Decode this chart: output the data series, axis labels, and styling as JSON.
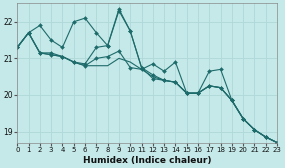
{
  "xlabel": "Humidex (Indice chaleur)",
  "bg_color": "#c5e8e8",
  "line_color": "#1e6b6b",
  "grid_color": "#b0d8d8",
  "xlim": [
    0,
    23
  ],
  "ylim": [
    18.7,
    22.5
  ],
  "yticks": [
    19,
    20,
    21,
    22
  ],
  "xticks": [
    0,
    1,
    2,
    3,
    4,
    5,
    6,
    7,
    8,
    9,
    10,
    11,
    12,
    13,
    14,
    15,
    16,
    17,
    18,
    19,
    20,
    21,
    22,
    23
  ],
  "series": [
    {
      "y": [
        21.3,
        21.7,
        21.15,
        21.1,
        21.05,
        20.9,
        20.8,
        20.8,
        20.8,
        21.0,
        20.9,
        20.7,
        20.5,
        20.4,
        20.35,
        20.05,
        20.05,
        20.25,
        20.2,
        19.85,
        19.35,
        19.05,
        18.85,
        18.7
      ],
      "marker": false
    },
    {
      "y": [
        21.3,
        21.7,
        21.15,
        21.1,
        21.05,
        20.9,
        20.85,
        21.3,
        21.35,
        22.3,
        21.75,
        20.75,
        20.55,
        20.4,
        20.35,
        20.05,
        20.05,
        20.25,
        20.2,
        19.85,
        19.35,
        19.05,
        18.85,
        18.7
      ],
      "marker": true
    },
    {
      "y": [
        21.3,
        21.7,
        21.15,
        21.15,
        21.05,
        20.9,
        20.8,
        21.0,
        21.05,
        21.2,
        20.75,
        20.7,
        20.85,
        20.65,
        20.9,
        20.05,
        20.05,
        20.65,
        20.7,
        19.85,
        19.35,
        19.05,
        18.85,
        18.7
      ],
      "marker": true
    },
    {
      "y": [
        21.3,
        21.7,
        21.9,
        21.5,
        21.3,
        22.0,
        22.1,
        21.7,
        21.35,
        22.35,
        21.75,
        20.75,
        20.45,
        20.4,
        20.35,
        20.05,
        20.05,
        20.25,
        20.2,
        19.85,
        19.35,
        19.05,
        18.85,
        18.7
      ],
      "marker": true
    }
  ]
}
